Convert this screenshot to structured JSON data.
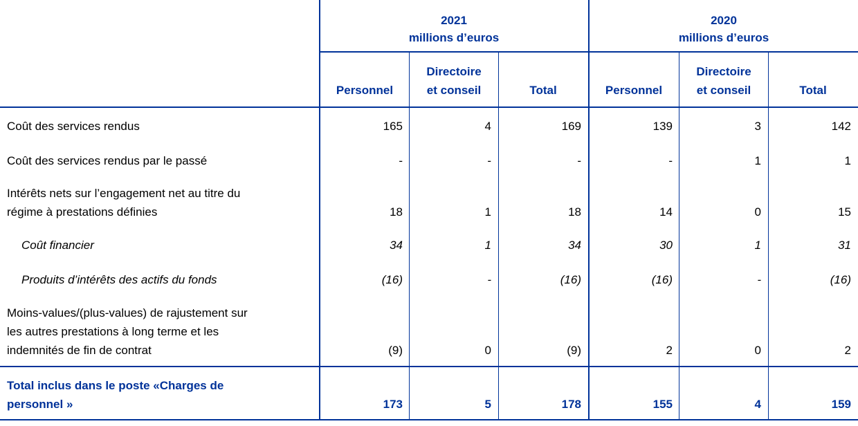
{
  "header": {
    "years": [
      {
        "year": "2021",
        "unit": "millions d’euros"
      },
      {
        "year": "2020",
        "unit": "millions d’euros"
      }
    ],
    "columns": [
      [
        "Personnel"
      ],
      [
        "Directoire",
        "et conseil"
      ],
      [
        "Total"
      ],
      [
        "Personnel"
      ],
      [
        "Directoire",
        "et conseil"
      ],
      [
        "Total"
      ]
    ]
  },
  "rows": [
    {
      "label": [
        "Coût des services rendus"
      ],
      "values": [
        "165",
        "4",
        "169",
        "139",
        "3",
        "142"
      ]
    },
    {
      "label": [
        "Coût des services rendus par le passé"
      ],
      "values": [
        "-",
        "-",
        "-",
        "-",
        "1",
        "1"
      ]
    },
    {
      "label": [
        "Intérêts nets sur l’engagement net au titre du",
        "régime à prestations définies"
      ],
      "values": [
        "18",
        "1",
        "18",
        "14",
        "0",
        "15"
      ]
    },
    {
      "label": [
        "Coût financier"
      ],
      "values": [
        "34",
        "1",
        "34",
        "30",
        "1",
        "31"
      ]
    },
    {
      "label": [
        "Produits d’intérêts des actifs du fonds"
      ],
      "values": [
        "(16)",
        "-",
        "(16)",
        "(16)",
        "-",
        "(16)"
      ]
    },
    {
      "label": [
        "Moins-values/(plus-values) de rajustement sur",
        "les autres prestations à long terme et les",
        "indemnités de fin de contrat"
      ],
      "values": [
        "(9)",
        "0",
        "(9)",
        "2",
        "0",
        "2"
      ]
    }
  ],
  "total": {
    "label": [
      "Total inclus dans le poste «Charges de",
      "personnel »"
    ],
    "values": [
      "173",
      "5",
      "178",
      "155",
      "4",
      "159"
    ]
  }
}
